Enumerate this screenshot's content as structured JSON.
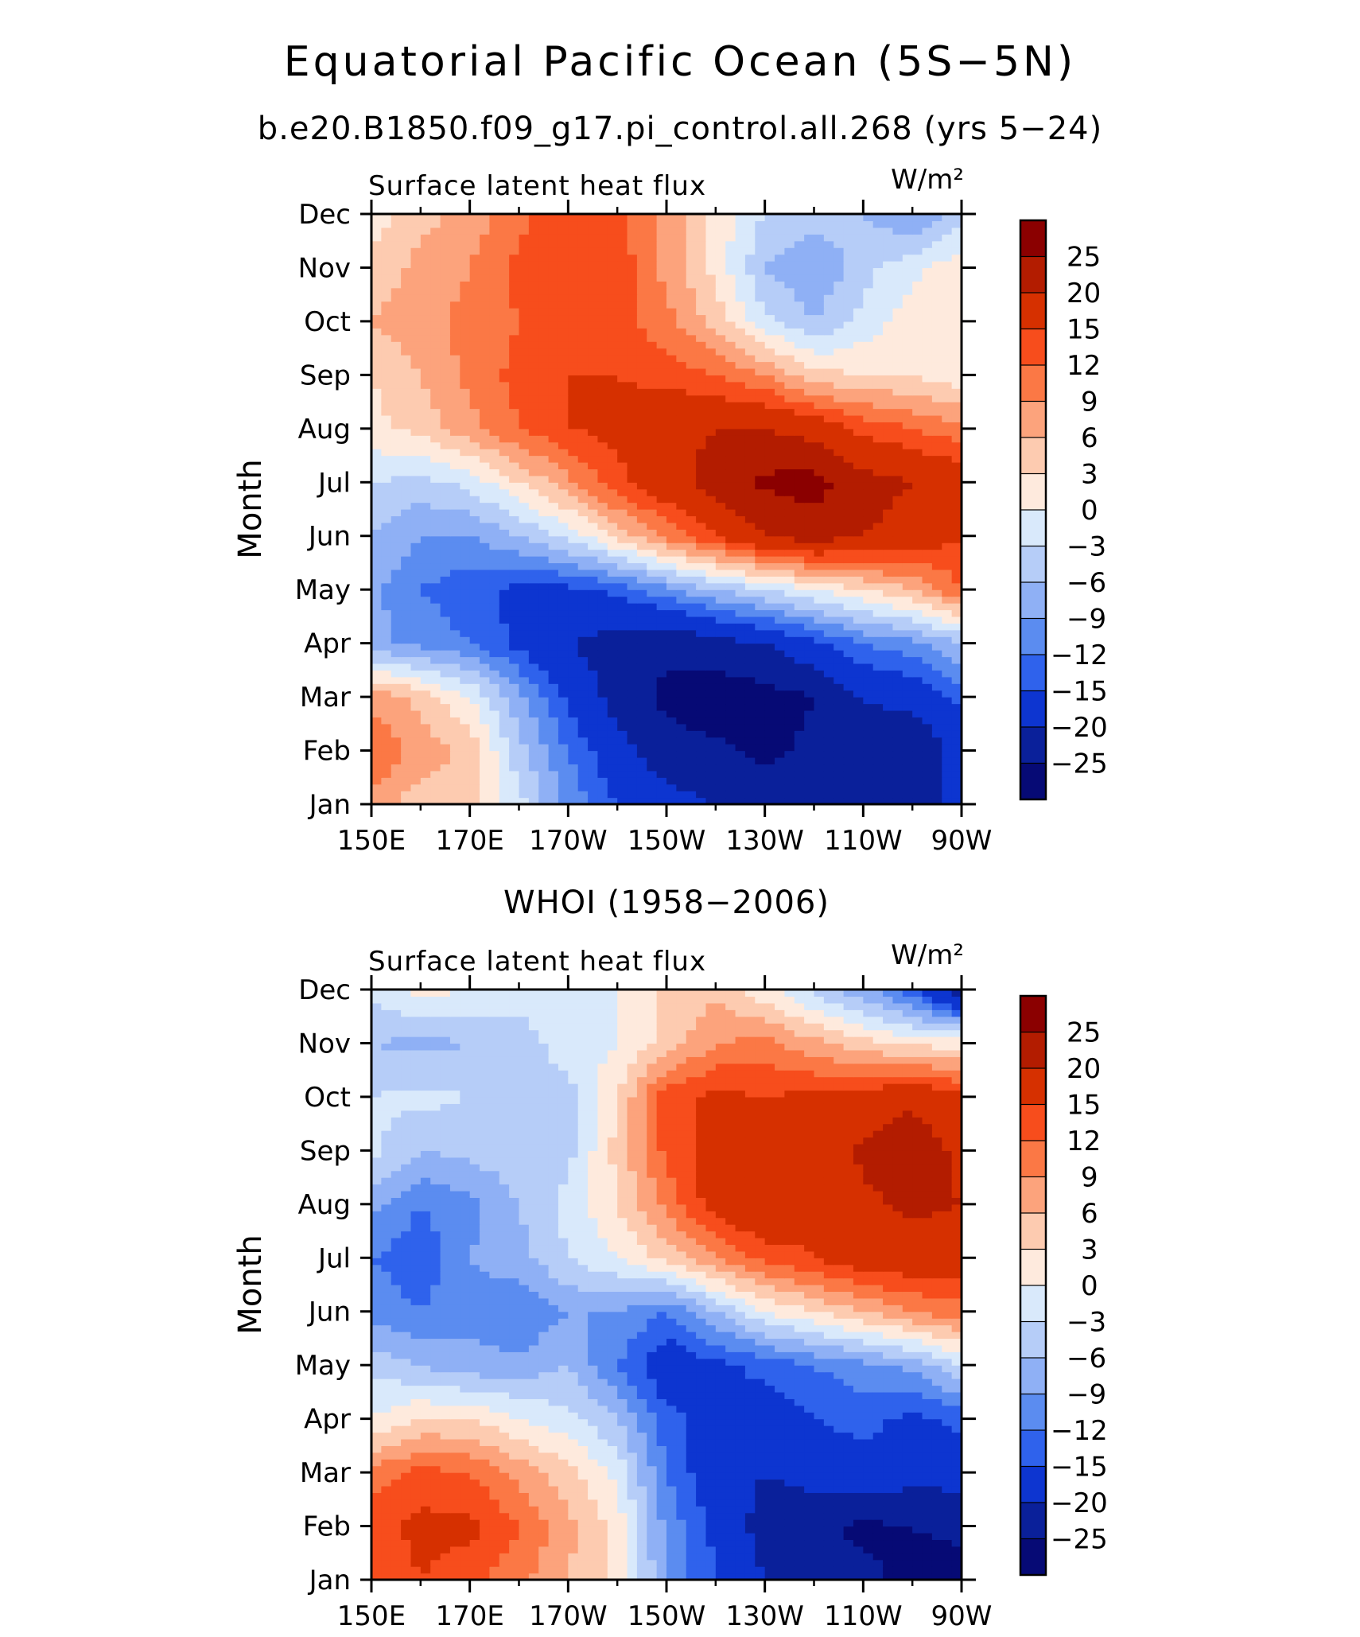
{
  "figure": {
    "title": "Equatorial Pacific Ocean (5S−5N)",
    "subtitle_top": "b.e20.B1850.f09_g17.pi_control.all.268 (yrs 5−24)",
    "subtitle_bottom": "WHOI (1958−2006)"
  },
  "chart_data": [
    {
      "type": "heatmap",
      "panel": "model",
      "title": "Surface latent heat flux",
      "units": "W/m²",
      "xlabel": "",
      "ylabel": "Month",
      "x_ticks": [
        "150E",
        "170E",
        "170W",
        "150W",
        "130W",
        "110W",
        "90W"
      ],
      "x_tick_lon": [
        150,
        170,
        190,
        210,
        230,
        250,
        270
      ],
      "xlim": [
        150,
        270
      ],
      "y_ticks": [
        "Jan",
        "Feb",
        "Mar",
        "Apr",
        "May",
        "Jun",
        "Jul",
        "Aug",
        "Sep",
        "Oct",
        "Nov",
        "Dec"
      ],
      "ylim": [
        1,
        12
      ],
      "lon": [
        150,
        160,
        170,
        180,
        190,
        200,
        210,
        220,
        230,
        240,
        250,
        260,
        270
      ],
      "values": [
        [
          8,
          4,
          4,
          -2,
          -10,
          -15,
          -18,
          -20,
          -22,
          -23,
          -20,
          -25,
          -15
        ],
        [
          12,
          8,
          5,
          -5,
          -12,
          -18,
          -23,
          -24,
          -26,
          -24,
          -22,
          -25,
          -18
        ],
        [
          8,
          5,
          0,
          -8,
          -16,
          -22,
          -26,
          -28,
          -27,
          -25,
          -20,
          -18,
          -14
        ],
        [
          -8,
          -10,
          -12,
          -16,
          -20,
          -22,
          -24,
          -22,
          -20,
          -16,
          -12,
          -10,
          -6
        ],
        [
          -8,
          -12,
          -14,
          -16,
          -16,
          -14,
          -10,
          -6,
          -3,
          0,
          3,
          6,
          12
        ],
        [
          -6,
          -9,
          -9,
          -6,
          -2,
          4,
          10,
          15,
          20,
          22,
          20,
          18,
          15
        ],
        [
          -3,
          -4,
          -2,
          3,
          8,
          14,
          18,
          22,
          26,
          27,
          22,
          20,
          18
        ],
        [
          2,
          4,
          8,
          12,
          15,
          16,
          18,
          20,
          20,
          18,
          14,
          12,
          10
        ],
        [
          3,
          6,
          10,
          13,
          15,
          15,
          14,
          12,
          9,
          4,
          3,
          3,
          1
        ],
        [
          6,
          8,
          10,
          12,
          14,
          13,
          10,
          5,
          -2,
          -6,
          -2,
          2,
          2
        ],
        [
          4,
          7,
          9,
          13,
          15,
          14,
          8,
          2,
          -6,
          -9,
          -4,
          -1,
          2
        ],
        [
          1,
          5,
          7,
          11,
          15,
          13,
          8,
          2,
          -3,
          -4,
          -6,
          -9,
          -4
        ]
      ]
    },
    {
      "type": "heatmap",
      "panel": "observed",
      "title": "Surface latent heat flux",
      "units": "W/m²",
      "xlabel": "",
      "ylabel": "Month",
      "x_ticks": [
        "150E",
        "170E",
        "170W",
        "150W",
        "130W",
        "110W",
        "90W"
      ],
      "x_tick_lon": [
        150,
        170,
        190,
        210,
        230,
        250,
        270
      ],
      "xlim": [
        150,
        270
      ],
      "y_ticks": [
        "Jan",
        "Feb",
        "Mar",
        "Apr",
        "May",
        "Jun",
        "Jul",
        "Aug",
        "Sep",
        "Oct",
        "Nov",
        "Dec"
      ],
      "ylim": [
        1,
        12
      ],
      "lon": [
        150,
        160,
        170,
        180,
        190,
        200,
        210,
        220,
        230,
        240,
        250,
        260,
        270
      ],
      "values": [
        [
          12,
          15,
          13,
          10,
          6,
          2,
          -9,
          -15,
          -20,
          -22,
          -24,
          -26,
          -27
        ],
        [
          14,
          16,
          16,
          12,
          7,
          2,
          -10,
          -16,
          -22,
          -24,
          -26,
          -25,
          -24
        ],
        [
          10,
          13,
          12,
          8,
          4,
          -1,
          -12,
          -18,
          -20,
          -18,
          -16,
          -18,
          -18
        ],
        [
          0,
          3,
          3,
          0,
          -2,
          -6,
          -14,
          -16,
          -17,
          -15,
          -14,
          -16,
          -14
        ],
        [
          -4,
          -6,
          -8,
          -8,
          -6,
          -12,
          -18,
          -16,
          -14,
          -12,
          -10,
          -8,
          -3
        ],
        [
          -10,
          -12,
          -10,
          -12,
          -9,
          -9,
          -12,
          -6,
          0,
          3,
          6,
          9,
          11
        ],
        [
          -12,
          -14,
          -9,
          -7,
          -3,
          0,
          4,
          9,
          13,
          15,
          18,
          18,
          17
        ],
        [
          -8,
          -12,
          -10,
          -6,
          -2,
          3,
          10,
          17,
          20,
          16,
          19,
          21,
          20
        ],
        [
          -2,
          -6,
          -5,
          -4,
          -4,
          4,
          13,
          17,
          18,
          16,
          21,
          23,
          19
        ],
        [
          -3,
          -2,
          -3,
          -3,
          -4,
          3,
          14,
          16,
          15,
          16,
          17,
          19,
          16
        ],
        [
          -6,
          -7,
          -6,
          -4,
          -2,
          0,
          4,
          9,
          10,
          7,
          4,
          2,
          2
        ],
        [
          -2,
          1,
          0,
          -2,
          -2,
          0,
          4,
          5,
          1,
          -4,
          -8,
          -14,
          -24
        ]
      ]
    }
  ],
  "colorbar": {
    "labels": [
      "25",
      "20",
      "15",
      "12",
      "9",
      "6",
      "3",
      "0",
      "−3",
      "−6",
      "−9",
      "−12",
      "−15",
      "−20",
      "−25"
    ],
    "levels": [
      25,
      20,
      15,
      12,
      9,
      6,
      3,
      0,
      -3,
      -6,
      -9,
      -12,
      -15,
      -20,
      -25
    ],
    "colors_top_to_bottom": [
      "#8b0000",
      "#b31c00",
      "#d63000",
      "#f74d1c",
      "#fb7845",
      "#fca37c",
      "#fdcbb0",
      "#feeadd",
      "#d9e9fb",
      "#b6cdf8",
      "#8fb0f5",
      "#5b8cf0",
      "#2f62ec",
      "#0d35d0",
      "#0a209a",
      "#060a75"
    ]
  }
}
